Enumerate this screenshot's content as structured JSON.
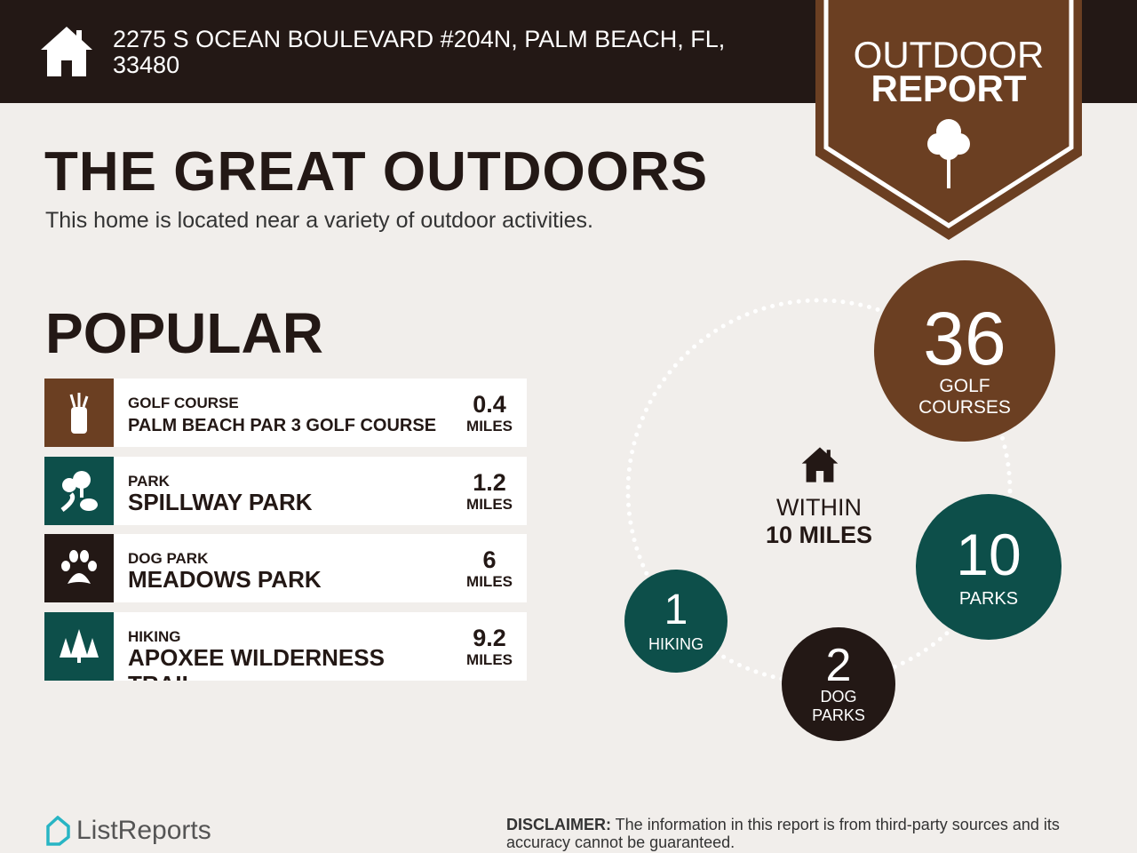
{
  "header": {
    "address": "2275 S OCEAN BOULEVARD #204N, PALM BEACH, FL, 33480",
    "icon": "house-icon"
  },
  "badge": {
    "line1": "OUTDOOR",
    "line2": "REPORT",
    "icon": "tree-icon",
    "color": "#6b3f22"
  },
  "title": "THE GREAT OUTDOORS",
  "subtitle": "This home is located near a variety of outdoor activities.",
  "popular": {
    "heading": "POPULAR",
    "items": [
      {
        "category": "GOLF COURSE",
        "name": "PALM BEACH PAR 3 GOLF COURSE",
        "distance": "0.4",
        "unit": "MILES",
        "icon": "golf-bag-icon",
        "color": "#6b3f22"
      },
      {
        "category": "PARK",
        "name": "SPILLWAY PARK",
        "distance": "1.2",
        "unit": "MILES",
        "icon": "park-icon",
        "color": "#0d4f4a"
      },
      {
        "category": "DOG PARK",
        "name": "MEADOWS PARK",
        "distance": "6",
        "unit": "MILES",
        "icon": "paw-icon",
        "color": "#231815"
      },
      {
        "category": "HIKING",
        "name": "APOXEE WILDERNESS TRAIL",
        "distance": "9.2",
        "unit": "MILES",
        "icon": "pine-trees-icon",
        "color": "#0d4f4a"
      }
    ]
  },
  "summary": {
    "within_line1": "WITHIN",
    "within_line2": "10 MILES",
    "golf": {
      "count": "36",
      "label1": "GOLF",
      "label2": "COURSES"
    },
    "parks": {
      "count": "10",
      "label": "PARKS"
    },
    "dog": {
      "count": "2",
      "label1": "DOG",
      "label2": "PARKS"
    },
    "hiking": {
      "count": "1",
      "label": "HIKING"
    }
  },
  "footer": {
    "logo": "ListReports",
    "disclaimer_label": "DISCLAIMER:",
    "disclaimer": " The information in this report is from third-party sources and its accuracy cannot be guaranteed."
  }
}
